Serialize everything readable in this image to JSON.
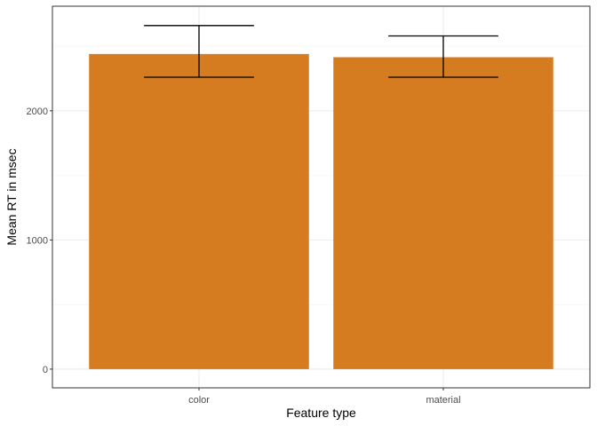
{
  "chart_data": {
    "type": "bar",
    "categories": [
      "color",
      "material"
    ],
    "values": [
      2440,
      2415
    ],
    "error_bars": [
      {
        "low": 2260,
        "high": 2660
      },
      {
        "low": 2260,
        "high": 2580
      }
    ],
    "title": "",
    "xlabel": "Feature type",
    "ylabel": "Mean RT in msec",
    "ylim": [
      -145,
      2810
    ],
    "yticks": [
      0,
      1000,
      2000
    ],
    "grid": true,
    "legend": "none",
    "bar_color": "#D47C1F",
    "error_bar_color": "#000000",
    "panel_border_color": "#333333",
    "grid_major_color": "#ebebeb",
    "grid_minor_color": "#f5f5f5"
  }
}
